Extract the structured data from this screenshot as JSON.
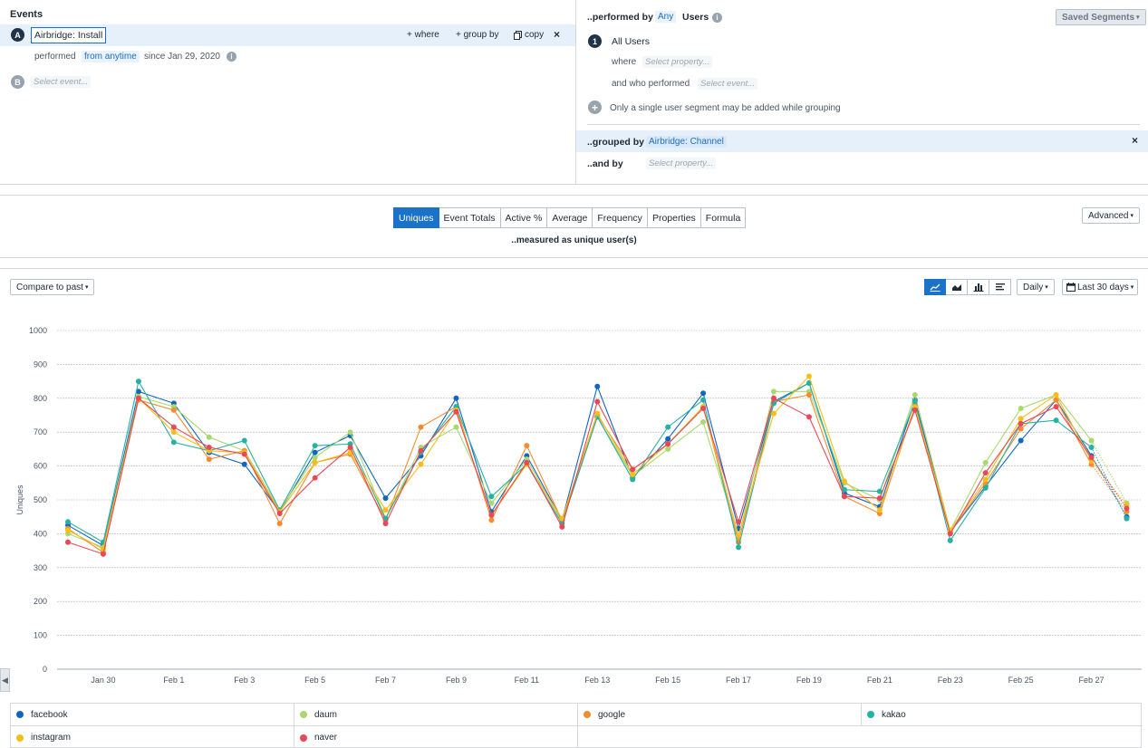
{
  "events": {
    "header": "Events",
    "a_letter": "A",
    "a_name": "Airbridge: Install",
    "where_label": "+ where",
    "groupby_label": "+ group by",
    "copy_label": "copy",
    "performed_label": "performed",
    "from_label": "from anytime",
    "since_label": "since Jan 29, 2020",
    "b_letter": "B",
    "b_placeholder": "Select event..."
  },
  "segment": {
    "performed_by": "..performed by",
    "any_chip": "Any",
    "users_label": "Users",
    "saved_segments": "Saved Segments",
    "seg_number": "1",
    "seg_name": "All Users",
    "where_label": "where",
    "where_placeholder": "Select property...",
    "who_label": "and who performed",
    "who_placeholder": "Select event...",
    "single_note": "Only a single user segment may be added while grouping",
    "grouped_by": "..grouped by",
    "grouped_chip": "Airbridge: Channel",
    "and_by": "..and by",
    "and_placeholder": "Select property..."
  },
  "metrics": {
    "tabs": [
      "Uniques",
      "Event Totals",
      "Active %",
      "Average",
      "Frequency",
      "Properties",
      "Formula"
    ],
    "active_tab": 0,
    "measured": "..measured as unique user(s)",
    "advanced": "Advanced"
  },
  "toolbar": {
    "compare": "Compare to past",
    "interval": "Daily",
    "range": "Last 30 days"
  },
  "colors": {
    "accent": "#1a73c9",
    "facebook": "#1166c0",
    "daum": "#a9d86e",
    "google": "#f58a30",
    "kakao": "#26b2a2",
    "instagram": "#f5be1a",
    "naver": "#ea4857"
  },
  "chart_data": {
    "type": "line",
    "ylabel": "Uniques",
    "ylim": [
      0,
      1000
    ],
    "yticks": [
      0,
      100,
      200,
      300,
      400,
      500,
      600,
      700,
      800,
      900,
      1000
    ],
    "x": [
      "Jan 29",
      "Jan 30",
      "Jan 31",
      "Feb 1",
      "Feb 2",
      "Feb 3",
      "Feb 4",
      "Feb 5",
      "Feb 6",
      "Feb 7",
      "Feb 8",
      "Feb 9",
      "Feb 10",
      "Feb 11",
      "Feb 12",
      "Feb 13",
      "Feb 14",
      "Feb 15",
      "Feb 16",
      "Feb 17",
      "Feb 18",
      "Feb 19",
      "Feb 20",
      "Feb 21",
      "Feb 22",
      "Feb 23",
      "Feb 24",
      "Feb 25",
      "Feb 26",
      "Feb 27",
      "Feb 28"
    ],
    "xtick_labels": [
      "Jan 30",
      "Feb 1",
      "Feb 3",
      "Feb 5",
      "Feb 7",
      "Feb 9",
      "Feb 11",
      "Feb 13",
      "Feb 15",
      "Feb 17",
      "Feb 19",
      "Feb 21",
      "Feb 23",
      "Feb 25",
      "Feb 27"
    ],
    "series": [
      {
        "name": "facebook",
        "color_key": "facebook",
        "values": [
          425,
          365,
          820,
          785,
          640,
          605,
          465,
          640,
          690,
          505,
          630,
          800,
          465,
          630,
          440,
          835,
          565,
          680,
          815,
          415,
          790,
          845,
          520,
          480,
          795,
          405,
          540,
          675,
          795,
          630,
          450
        ]
      },
      {
        "name": "daum",
        "color_key": "daum",
        "values": [
          400,
          360,
          805,
          775,
          685,
          645,
          470,
          625,
          700,
          445,
          655,
          715,
          490,
          620,
          435,
          745,
          570,
          650,
          730,
          390,
          820,
          820,
          550,
          500,
          810,
          410,
          610,
          770,
          810,
          675,
          490
        ]
      },
      {
        "name": "google",
        "color_key": "google",
        "values": [
          415,
          345,
          795,
          765,
          620,
          645,
          430,
          610,
          635,
          440,
          715,
          775,
          440,
          660,
          440,
          750,
          590,
          665,
          775,
          375,
          790,
          810,
          510,
          460,
          780,
          405,
          550,
          710,
          795,
          605,
          465
        ]
      },
      {
        "name": "kakao",
        "color_key": "kakao",
        "values": [
          435,
          375,
          850,
          670,
          645,
          675,
          470,
          660,
          665,
          445,
          640,
          775,
          510,
          605,
          430,
          745,
          560,
          715,
          795,
          360,
          785,
          845,
          530,
          525,
          790,
          380,
          535,
          725,
          735,
          655,
          445
        ]
      },
      {
        "name": "instagram",
        "color_key": "instagram",
        "values": [
          410,
          355,
          800,
          700,
          645,
          640,
          465,
          610,
          640,
          470,
          605,
          765,
          455,
          605,
          445,
          755,
          575,
          665,
          775,
          395,
          755,
          865,
          555,
          470,
          775,
          410,
          560,
          740,
          810,
          615,
          485
        ]
      },
      {
        "name": "naver",
        "color_key": "naver",
        "values": [
          375,
          340,
          800,
          715,
          655,
          635,
          460,
          565,
          655,
          430,
          645,
          760,
          455,
          610,
          420,
          790,
          590,
          665,
          770,
          435,
          800,
          745,
          510,
          505,
          765,
          400,
          580,
          725,
          775,
          625,
          475
        ]
      }
    ],
    "grid": true,
    "legend_position": "bottom"
  },
  "legend": {
    "items": [
      "facebook",
      "daum",
      "google",
      "kakao",
      "instagram",
      "naver"
    ]
  }
}
